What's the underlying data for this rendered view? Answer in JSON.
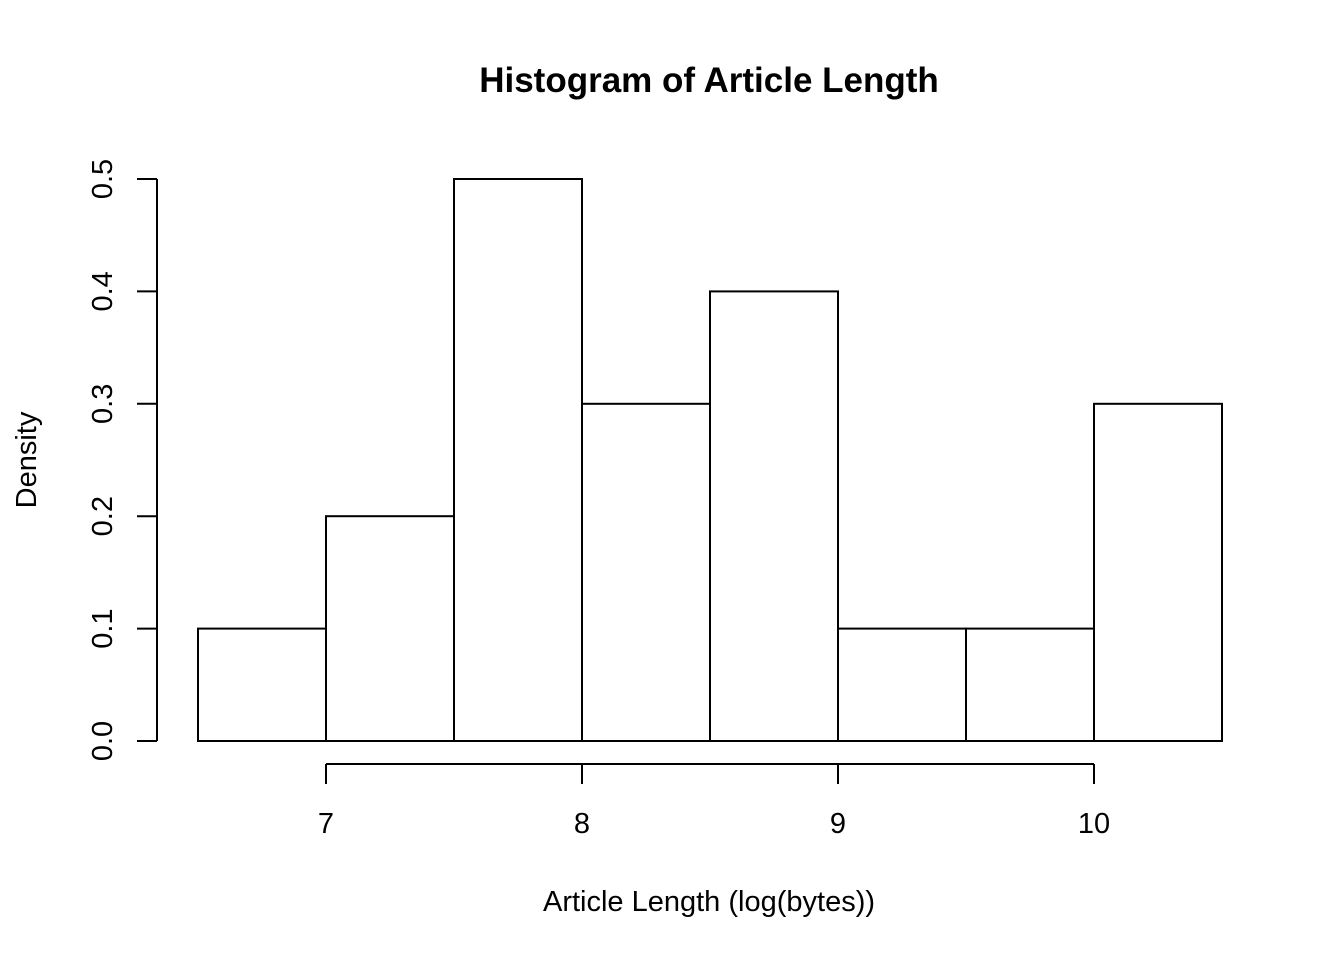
{
  "chart_data": {
    "type": "bar",
    "title": "Histogram of Article Length",
    "xlabel": "Article Length (log(bytes))",
    "ylabel": "Density",
    "bins": [
      {
        "start": 6.5,
        "end": 7.0,
        "density": 0.1
      },
      {
        "start": 7.0,
        "end": 7.5,
        "density": 0.2
      },
      {
        "start": 7.5,
        "end": 8.0,
        "density": 0.5
      },
      {
        "start": 8.0,
        "end": 8.5,
        "density": 0.3
      },
      {
        "start": 8.5,
        "end": 9.0,
        "density": 0.4
      },
      {
        "start": 9.0,
        "end": 9.5,
        "density": 0.1
      },
      {
        "start": 9.5,
        "end": 10.0,
        "density": 0.1
      },
      {
        "start": 10.0,
        "end": 10.5,
        "density": 0.3
      }
    ],
    "x_ticks": [
      7,
      8,
      9,
      10
    ],
    "x_tick_labels": [
      "7",
      "8",
      "9",
      "10"
    ],
    "y_ticks": [
      0.0,
      0.1,
      0.2,
      0.3,
      0.4,
      0.5
    ],
    "y_tick_labels": [
      "0.0",
      "0.1",
      "0.2",
      "0.3",
      "0.4",
      "0.5"
    ],
    "xlim": [
      6.5,
      10.5
    ],
    "ylim": [
      0,
      0.5
    ],
    "grid": false,
    "colors": {
      "bar_fill": "#ffffff",
      "bar_stroke": "#000000"
    }
  }
}
